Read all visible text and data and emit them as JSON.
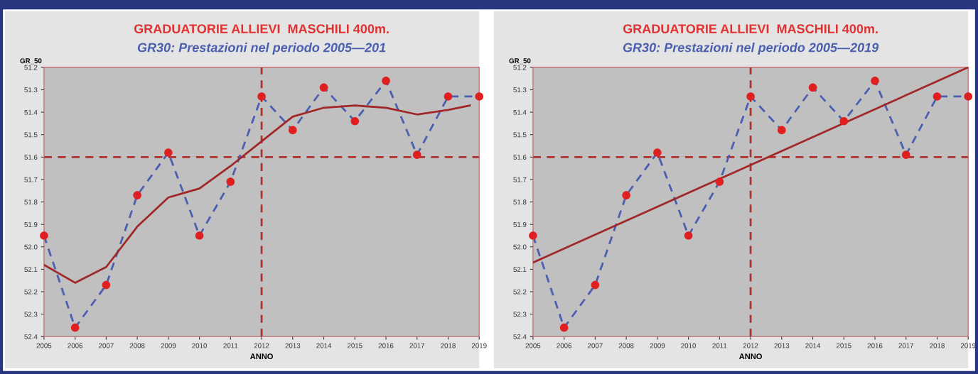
{
  "chart_data": [
    {
      "type": "line",
      "title": "GRADUATORIE ALLIEVI  MASCHILI 400m.",
      "subtitle": "GR30: Prestazioni nel periodo 2005—201",
      "xlabel": "ANNO",
      "ylabel": "GR_50",
      "x": [
        2005,
        2006,
        2007,
        2008,
        2009,
        2010,
        2011,
        2012,
        2013,
        2014,
        2015,
        2016,
        2017,
        2018,
        2019
      ],
      "series": [
        {
          "color": "#4a5fb0",
          "colors": [
            "#e02020",
            "#e02020",
            "#e02020",
            "#e02020",
            "#e02020",
            "#e02020",
            "#e02020",
            "#e02020",
            "#e02020",
            "#e02020",
            "#e02020",
            "#e02020",
            "#e02020",
            "#e02020",
            "#e02020"
          ],
          "marker": "circle",
          "line_style": "dashed",
          "values": [
            51.95,
            52.36,
            52.17,
            51.77,
            51.58,
            51.95,
            51.71,
            51.33,
            51.48,
            51.29,
            51.44,
            51.26,
            51.59,
            51.33,
            51.33
          ]
        },
        {
          "type": "line",
          "color": "#a02828",
          "marker": "none",
          "line_style": "solid",
          "x": [
            2005,
            2006,
            2007,
            2008,
            2009,
            2010,
            2011,
            2012,
            2013,
            2014,
            2015,
            2016,
            2017,
            2018,
            2018.7
          ],
          "values": [
            52.08,
            52.16,
            52.09,
            51.91,
            51.78,
            51.74,
            51.64,
            51.53,
            51.42,
            51.38,
            51.37,
            51.38,
            51.41,
            51.39,
            51.37
          ]
        }
      ],
      "xlim": [
        2005,
        2019
      ],
      "xticks": [
        2005,
        2006,
        2007,
        2008,
        2009,
        2010,
        2011,
        2012,
        2013,
        2014,
        2015,
        2016,
        2017,
        2018,
        2019
      ],
      "ylim": [
        52.4,
        51.2
      ],
      "yticks": [
        51.2,
        51.3,
        51.4,
        51.5,
        51.6,
        51.7,
        51.8,
        51.9,
        {
          "value": 52.0,
          "label": "52.0"
        },
        52.1,
        52.2,
        52.3,
        52.4
      ],
      "ref_lines": [
        {
          "axis": "y",
          "value": 51.6,
          "color": "#b03030",
          "line_style": "dashed"
        },
        {
          "axis": "x",
          "value": 2012,
          "color": "#b03030",
          "line_style": "dashed"
        }
      ],
      "grid": false,
      "legend": false
    },
    {
      "type": "line",
      "title": "GRADUATORIE ALLIEVI  MASCHILI 400m.",
      "subtitle": "GR30: Prestazioni nel periodo 2005—2019",
      "xlabel": "ANNO",
      "ylabel": "GR_50",
      "x": [
        2005,
        2006,
        2007,
        2008,
        2009,
        2010,
        2011,
        2012,
        2013,
        2014,
        2015,
        2016,
        2017,
        2018,
        2019
      ],
      "series": [
        {
          "color": "#4a5fb0",
          "colors": [
            "#e02020",
            "#e02020",
            "#e02020",
            "#e02020",
            "#e02020",
            "#e02020",
            "#e02020",
            "#e02020",
            "#e02020",
            "#e02020",
            "#e02020",
            "#e02020",
            "#e02020",
            "#e02020",
            "#e02020"
          ],
          "marker": "circle",
          "line_style": "dashed",
          "values": [
            51.95,
            52.36,
            52.17,
            51.77,
            51.58,
            51.95,
            51.71,
            51.33,
            51.48,
            51.29,
            51.44,
            51.26,
            51.59,
            51.33,
            51.33
          ]
        },
        {
          "type": "line",
          "color": "#a02828",
          "marker": "none",
          "line_style": "solid",
          "x": [
            2005,
            2019
          ],
          "values": [
            52.07,
            51.2
          ]
        }
      ],
      "xlim": [
        2005,
        2019
      ],
      "xticks": [
        2005,
        2006,
        2007,
        2008,
        2009,
        2010,
        2011,
        2012,
        2013,
        2014,
        2015,
        2016,
        2017,
        2018,
        2019
      ],
      "ylim": [
        52.4,
        51.2
      ],
      "yticks": [
        51.2,
        51.3,
        51.4,
        51.5,
        51.6,
        51.7,
        51.8,
        51.9,
        {
          "value": 52.0,
          "label": "52.0"
        },
        52.1,
        52.2,
        52.3,
        52.4
      ],
      "ref_lines": [
        {
          "axis": "y",
          "value": 51.6,
          "color": "#b03030",
          "line_style": "dashed"
        },
        {
          "axis": "x",
          "value": 2012,
          "color": "#b03030",
          "line_style": "dashed"
        }
      ],
      "grid": false,
      "legend": false
    }
  ]
}
